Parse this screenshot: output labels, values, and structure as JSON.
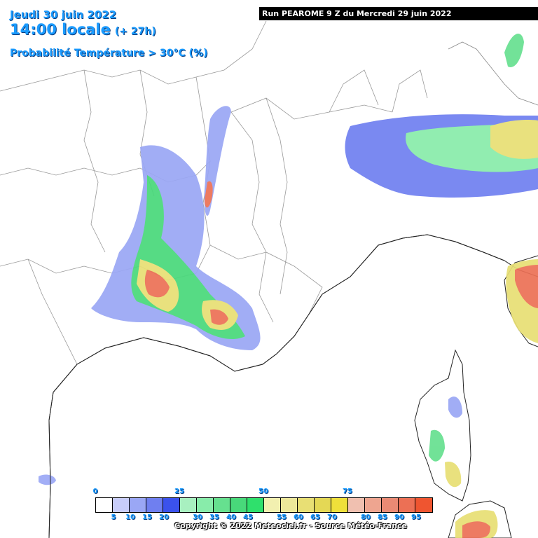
{
  "header": {
    "date": "Jeudi 30 juin 2022",
    "time": "14:00 locale",
    "lead": "(+ 27h)",
    "parameter": "Probabilité Température > 30°C (%)"
  },
  "run": {
    "label": "Run PEAROME 9 Z du Mercredi 29 juin 2022"
  },
  "legend": {
    "top_ticks": [
      "0",
      "25",
      "50",
      "75"
    ],
    "bottom_ticks": [
      "5",
      "10",
      "15",
      "20",
      "30",
      "35",
      "40",
      "45",
      "55",
      "60",
      "65",
      "70",
      "80",
      "85",
      "90",
      "95"
    ],
    "colors": [
      "#ffffff",
      "#c8cdfa",
      "#9aa7f5",
      "#6f7ff0",
      "#3b52ec",
      "#a8f0c0",
      "#88ecaa",
      "#66e08f",
      "#48d97a",
      "#2fe06c",
      "#f2f0b0",
      "#ede89a",
      "#e8df74",
      "#e4d855",
      "#efe03a",
      "#f0c0b0",
      "#eea590",
      "#ea8a74",
      "#ec7055",
      "#ef5530"
    ]
  },
  "copyright": "Copyright © 2022 Meteociel.fr - Source Météo-France"
}
